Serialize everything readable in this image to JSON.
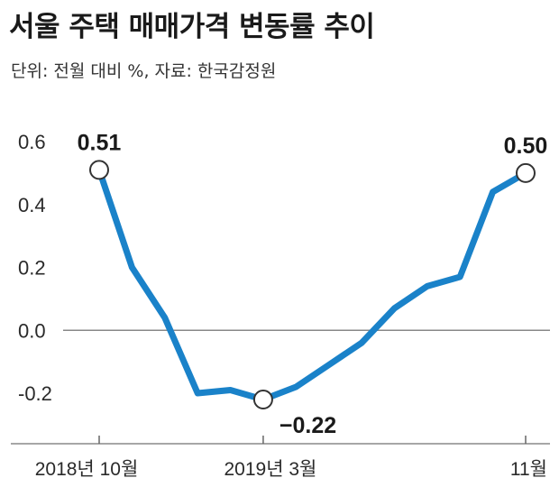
{
  "header": {
    "title": "서울 주택 매매가격 변동률 추이",
    "subtitle": "단위: 전월 대비 %, 자료: 한국감정원"
  },
  "chart_data": {
    "type": "line",
    "title": "서울 주택 매매가격 변동률 추이",
    "unit": "단위: 전월 대비 %",
    "source": "자료: 한국감정원",
    "x": [
      "2018-10",
      "2018-11",
      "2018-12",
      "2019-01",
      "2019-02",
      "2019-03",
      "2019-04",
      "2019-05",
      "2019-06",
      "2019-07",
      "2019-08",
      "2019-09",
      "2019-10",
      "2019-11"
    ],
    "series": [
      {
        "values": [
          0.51,
          0.2,
          0.04,
          -0.2,
          -0.19,
          -0.22,
          -0.18,
          -0.11,
          -0.04,
          0.07,
          0.14,
          0.17,
          0.44,
          0.5
        ]
      }
    ],
    "ylim": [
      -0.37,
      0.68
    ],
    "yticks": [
      0.6,
      0.4,
      0.2,
      0.0,
      -0.2
    ],
    "ytick_labels": [
      "0.6",
      "0.4",
      "0.2",
      "0.0",
      "-0.2"
    ],
    "xticks": [
      {
        "index": 0,
        "label": "2018년 10월"
      },
      {
        "index": 5,
        "label": "2019년 3월"
      },
      {
        "index": 13,
        "label": "11월"
      }
    ],
    "annotations": [
      {
        "index": 0,
        "label": "0.51",
        "pos": "above"
      },
      {
        "index": 5,
        "label": "−0.22",
        "pos": "below-right"
      },
      {
        "index": 13,
        "label": "0.50",
        "pos": "above"
      }
    ],
    "line_color": "#1a82c9",
    "zero_line": true,
    "grid": false
  }
}
